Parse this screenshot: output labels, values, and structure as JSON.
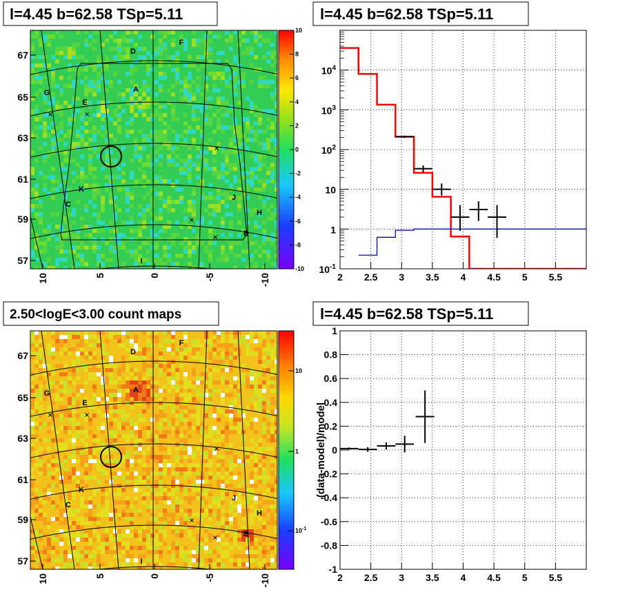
{
  "colors": {
    "residual_bg": "#33cc55",
    "count_bg": "#f2c21a",
    "model_total": "#ff0000",
    "model_background": "#0000cc",
    "data": "#000000"
  },
  "map_labels": {
    "sources": [
      "A",
      "B",
      "C",
      "D",
      "E",
      "F",
      "G",
      "H",
      "I",
      "J",
      "K"
    ],
    "lon_ticks": [
      "10",
      "5",
      "0",
      "-5",
      "-10"
    ],
    "lat_ticks": [
      "67",
      "65",
      "63",
      "61",
      "59",
      "57"
    ]
  },
  "chart_data": [
    {
      "id": "residual-map",
      "type": "heatmap",
      "title": "l=4.45 b=62.58 TSp=5.11",
      "colorbar": {
        "scale": "linear",
        "range": [
          -10,
          10
        ],
        "ticks": [
          "10",
          "8",
          "6",
          "4",
          "2",
          "0",
          "-2",
          "-4",
          "-6",
          "-8",
          "-10"
        ]
      }
    },
    {
      "id": "spectrum",
      "type": "line",
      "title": "l=4.45 b=62.58 TSp=5.11",
      "xlim": [
        2,
        6
      ],
      "ylim": [
        0.1,
        100000
      ],
      "yscale": "log",
      "x_ticks": [
        "2",
        "2.5",
        "3",
        "3.5",
        "4",
        "4.5",
        "5",
        "5.5"
      ],
      "y_ticks": [
        "10^-1",
        "1",
        "10",
        "10^2",
        "10^3",
        "10^4"
      ],
      "grid": true,
      "series": [
        {
          "role": "total-model",
          "color": "#ff0000",
          "style": "step",
          "edges": [
            2.0,
            2.3,
            2.6,
            2.9,
            3.2,
            3.5,
            3.8,
            4.1,
            4.4,
            6.0
          ],
          "values": [
            36000,
            8000,
            1350,
            210,
            26,
            6.5,
            0.65,
            0.1,
            0.1
          ]
        },
        {
          "role": "background-model",
          "color": "#0000cc",
          "style": "step",
          "edges": [
            2.3,
            2.6,
            2.9,
            3.2,
            6.0
          ],
          "values": [
            0.22,
            0.62,
            0.93,
            1.0
          ]
        },
        {
          "role": "data",
          "color": "#000000",
          "style": "errorbar",
          "points": [
            {
              "x": 3.05,
              "y": 210,
              "xerr": 0.15,
              "ylo": 195,
              "yhi": 225
            },
            {
              "x": 3.35,
              "y": 33,
              "xerr": 0.15,
              "ylo": 27,
              "yhi": 40
            },
            {
              "x": 3.65,
              "y": 10,
              "xerr": 0.15,
              "ylo": 7,
              "yhi": 14
            },
            {
              "x": 3.95,
              "y": 2,
              "xerr": 0.15,
              "ylo": 0.9,
              "yhi": 4
            },
            {
              "x": 4.25,
              "y": 3.1,
              "xerr": 0.15,
              "ylo": 1.6,
              "yhi": 5
            },
            {
              "x": 4.55,
              "y": 2,
              "xerr": 0.15,
              "ylo": 0.6,
              "yhi": 4
            }
          ]
        }
      ]
    },
    {
      "id": "count-map",
      "type": "heatmap",
      "title": "2.50<logE<3.00 count maps",
      "colorbar": {
        "scale": "log",
        "ticks": [
          "10",
          "1",
          "10^-1"
        ]
      }
    },
    {
      "id": "residual-ratio",
      "type": "scatter",
      "title": "l=4.45 b=62.58 TSp=5.11",
      "ylabel": "(data-model)/model",
      "xlim": [
        2,
        6
      ],
      "ylim": [
        -1,
        1
      ],
      "x_ticks": [
        "2",
        "2.5",
        "3",
        "3.5",
        "4",
        "4.5",
        "5",
        "5.5"
      ],
      "y_ticks": [
        "1",
        "0.8",
        "0.6",
        "0.4",
        "0.2",
        "0",
        "-0.2",
        "-0.4",
        "-0.6",
        "-0.8",
        "-1"
      ],
      "grid": true,
      "points": [
        {
          "x": 2.15,
          "y": 0.012,
          "xerr": 0.15,
          "yerr": 0.01
        },
        {
          "x": 2.45,
          "y": 0.005,
          "xerr": 0.15,
          "yerr": 0.02
        },
        {
          "x": 2.75,
          "y": 0.035,
          "xerr": 0.15,
          "yerr": 0.03
        },
        {
          "x": 3.05,
          "y": 0.05,
          "xerr": 0.15,
          "yerr": 0.07
        },
        {
          "x": 3.38,
          "y": 0.28,
          "xerr": 0.15,
          "yerr": 0.22
        }
      ]
    }
  ]
}
